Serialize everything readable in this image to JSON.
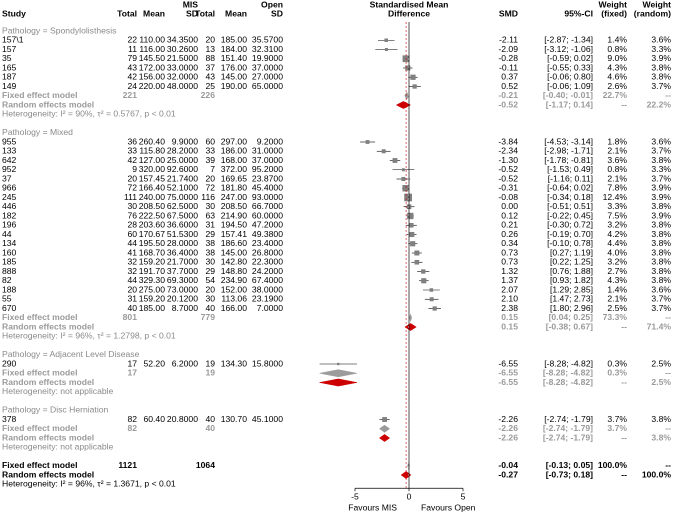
{
  "chart_data": {
    "type": "forest",
    "header": {
      "study": "Study",
      "total1": "Total",
      "mean1": "Mean",
      "group1": "MIS",
      "sd1": "SD",
      "total2": "Total",
      "mean2": "Mean",
      "group2": "Open",
      "sd2": "SD",
      "plot": [
        "Standardised Mean",
        "Difference"
      ],
      "smd": "SMD",
      "ci": "95%-CI",
      "weight_fixed": [
        "Weight",
        "(fixed)"
      ],
      "weight_random": [
        "Weight",
        "(random)"
      ]
    },
    "colors": {
      "square": "#808080",
      "ci": "#000000",
      "fixed": "#9c9c9c",
      "random": "#cc0000",
      "null_line": "#000000"
    },
    "xlim": [
      -5,
      5
    ],
    "xticks": [
      -5,
      0,
      5
    ],
    "xlabels": [
      "Favours MIS",
      "Favours Open"
    ],
    "groups": [
      {
        "title": "Pathology = Spondylolisthesis",
        "studies": [
          {
            "study": "157\\1",
            "n1": 22,
            "mean1": "110.00",
            "sd1": "34.3500",
            "n2": 20,
            "mean2": "185.00",
            "sd2": "35.5700",
            "smd": -2.11,
            "lo": -2.87,
            "hi": -1.34,
            "ci": "[-2.87; -1.34]",
            "w_fixed": {
              "value": 1.4,
              "label": "1.4%"
            },
            "w_random": "3.6%"
          },
          {
            "study": "157",
            "n1": 11,
            "mean1": "116.00",
            "sd1": "30.2600",
            "n2": 13,
            "mean2": "184.00",
            "sd2": "32.3100",
            "smd": -2.09,
            "lo": -3.12,
            "hi": -1.06,
            "ci": "[-3.12; -1.06]",
            "w_fixed": {
              "value": 0.8,
              "label": "0.8%"
            },
            "w_random": "3.3%"
          },
          {
            "study": "35",
            "n1": 79,
            "mean1": "145.50",
            "sd1": "21.5000",
            "n2": 88,
            "mean2": "151.40",
            "sd2": "19.9000",
            "smd": -0.28,
            "lo": -0.59,
            "hi": 0.02,
            "ci": "[-0.59; 0.02]",
            "w_fixed": {
              "value": 9.0,
              "label": "9.0%"
            },
            "w_random": "3.9%"
          },
          {
            "study": "165",
            "n1": 43,
            "mean1": "172.00",
            "sd1": "33.0000",
            "n2": 37,
            "mean2": "176.00",
            "sd2": "37.0000",
            "smd": -0.11,
            "lo": -0.55,
            "hi": 0.33,
            "ci": "[-0.55; 0.33]",
            "w_fixed": {
              "value": 4.3,
              "label": "4.3%"
            },
            "w_random": "3.8%"
          },
          {
            "study": "187",
            "n1": 42,
            "mean1": "156.00",
            "sd1": "32.0000",
            "n2": 43,
            "mean2": "145.00",
            "sd2": "27.0000",
            "smd": 0.37,
            "lo": -0.06,
            "hi": 0.8,
            "ci": "[-0.06; 0.80]",
            "w_fixed": {
              "value": 4.6,
              "label": "4.6%"
            },
            "w_random": "3.8%"
          },
          {
            "study": "149",
            "n1": 24,
            "mean1": "220.00",
            "sd1": "48.0000",
            "n2": 25,
            "mean2": "190.00",
            "sd2": "65.0000",
            "smd": 0.52,
            "lo": -0.06,
            "hi": 1.09,
            "ci": "[-0.06; 1.09]",
            "w_fixed": {
              "value": 2.6,
              "label": "2.6%"
            },
            "w_random": "3.7%"
          }
        ],
        "fixed": {
          "label": "Fixed effect model",
          "n1": 221,
          "n2": 226,
          "smd": -0.21,
          "lo": -0.4,
          "hi": -0.01,
          "ci": "[-0.40; -0.01]",
          "w_fixed": "22.7%",
          "w_random": "--"
        },
        "random": {
          "label": "Random effects model",
          "smd": -0.52,
          "lo": -1.17,
          "hi": 0.14,
          "ci": "[-1.17; 0.14]",
          "w_fixed": "--",
          "w_random": "22.2%"
        },
        "heterogeneity": "Heterogeneity: I² = 90%, τ² = 0.5767, p < 0.01"
      },
      {
        "title": "Pathology = Mixed",
        "studies": [
          {
            "study": "955",
            "n1": 36,
            "mean1": "260.40",
            "sd1": "9.9000",
            "n2": 60,
            "mean2": "297.00",
            "sd2": "9.2000",
            "smd": -3.84,
            "lo": -4.53,
            "hi": -3.14,
            "ci": "[-4.53; -3.14]",
            "w_fixed": {
              "value": 1.8,
              "label": "1.8%"
            },
            "w_random": "3.6%"
          },
          {
            "study": "133",
            "n1": 33,
            "mean1": "115.80",
            "sd1": "28.2000",
            "n2": 33,
            "mean2": "186.00",
            "sd2": "31.0000",
            "smd": -2.34,
            "lo": -2.98,
            "hi": -1.71,
            "ci": "[-2.98; -1.71]",
            "w_fixed": {
              "value": 2.1,
              "label": "2.1%"
            },
            "w_random": "3.7%"
          },
          {
            "study": "642",
            "n1": 42,
            "mean1": "127.00",
            "sd1": "25.0000",
            "n2": 39,
            "mean2": "168.00",
            "sd2": "37.0000",
            "smd": -1.3,
            "smd_label": "-1.30",
            "lo": -1.78,
            "hi": -0.81,
            "ci": "[-1.78; -0.81]",
            "w_fixed": {
              "value": 3.6,
              "label": "3.6%"
            },
            "w_random": "3.8%"
          },
          {
            "study": "952",
            "n1": 9,
            "mean1": "320.00",
            "sd1": "92.6000",
            "n2": 7,
            "mean2": "372.00",
            "sd2": "95.2000",
            "smd": -0.52,
            "lo": -1.53,
            "hi": 0.49,
            "ci": "[-1.53; 0.49]",
            "w_fixed": {
              "value": 0.8,
              "label": "0.8%"
            },
            "w_random": "3.3%"
          },
          {
            "study": "37",
            "n1": 20,
            "mean1": "157.45",
            "sd1": "21.7400",
            "n2": 20,
            "mean2": "169.65",
            "sd2": "23.8700",
            "smd": -0.52,
            "lo": -1.16,
            "hi": 0.11,
            "ci": "[-1.16; 0.11]",
            "w_fixed": {
              "value": 2.1,
              "label": "2.1%"
            },
            "w_random": "3.7%"
          },
          {
            "study": "966",
            "n1": 72,
            "mean1": "166.40",
            "sd1": "52.1000",
            "n2": 72,
            "mean2": "181.80",
            "sd2": "45.4000",
            "smd": -0.31,
            "lo": -0.64,
            "hi": 0.02,
            "ci": "[-0.64; 0.02]",
            "w_fixed": {
              "value": 7.8,
              "label": "7.8%"
            },
            "w_random": "3.9%"
          },
          {
            "study": "245",
            "n1": 111,
            "mean1": "240.00",
            "sd1": "75.0000",
            "n2": 116,
            "mean2": "247.00",
            "sd2": "93.0000",
            "smd": -0.08,
            "lo": -0.34,
            "hi": 0.18,
            "ci": "[-0.34; 0.18]",
            "w_fixed": {
              "value": 12.4,
              "label": "12.4%"
            },
            "w_random": "3.9%"
          },
          {
            "study": "446",
            "n1": 30,
            "mean1": "208.50",
            "sd1": "62.5000",
            "n2": 30,
            "mean2": "208.50",
            "sd2": "66.7000",
            "smd": 0,
            "smd_label": "0.00",
            "lo": -0.51,
            "hi": 0.51,
            "ci": "[-0.51; 0.51]",
            "w_fixed": {
              "value": 3.3,
              "label": "3.3%"
            },
            "w_random": "3.8%"
          },
          {
            "study": "182",
            "n1": 76,
            "mean1": "222.50",
            "sd1": "67.5000",
            "n2": 63,
            "mean2": "214.90",
            "sd2": "60.0000",
            "smd": 0.12,
            "lo": -0.22,
            "hi": 0.45,
            "ci": "[-0.22; 0.45]",
            "w_fixed": {
              "value": 7.5,
              "label": "7.5%"
            },
            "w_random": "3.9%"
          },
          {
            "study": "196",
            "n1": 28,
            "mean1": "203.60",
            "sd1": "36.6000",
            "n2": 31,
            "mean2": "194.50",
            "sd2": "47.2000",
            "smd": 0.21,
            "lo": -0.3,
            "hi": 0.72,
            "ci": "[-0.30; 0.72]",
            "w_fixed": {
              "value": 3.2,
              "label": "3.2%"
            },
            "w_random": "3.8%"
          },
          {
            "study": "44",
            "n1": 60,
            "mean1": "170.67",
            "sd1": "51.5300",
            "n2": 29,
            "mean2": "157.41",
            "sd2": "49.3800",
            "smd": 0.26,
            "lo": -0.19,
            "hi": 0.7,
            "ci": "[-0.19; 0.70]",
            "w_fixed": {
              "value": 4.2,
              "label": "4.2%"
            },
            "w_random": "3.8%"
          },
          {
            "study": "134",
            "n1": 44,
            "mean1": "195.50",
            "sd1": "28.0000",
            "n2": 38,
            "mean2": "186.60",
            "sd2": "23.4000",
            "smd": 0.34,
            "lo": -0.1,
            "hi": 0.78,
            "ci": "[-0.10; 0.78]",
            "w_fixed": {
              "value": 4.4,
              "label": "4.4%"
            },
            "w_random": "3.8%"
          },
          {
            "study": "160",
            "n1": 41,
            "mean1": "168.70",
            "sd1": "36.4000",
            "n2": 38,
            "mean2": "145.00",
            "sd2": "26.8000",
            "smd": 0.73,
            "lo": 0.27,
            "hi": 1.19,
            "ci": "[0.27; 1.19]",
            "w_fixed": {
              "value": 4.0,
              "label": "4.0%"
            },
            "w_random": "3.8%"
          },
          {
            "study": "185",
            "n1": 32,
            "mean1": "159.20",
            "sd1": "21.7000",
            "n2": 30,
            "mean2": "142.80",
            "sd2": "22.3000",
            "smd": 0.73,
            "lo": 0.22,
            "hi": 1.25,
            "ci": "[0.22; 1.25]",
            "w_fixed": {
              "value": 3.2,
              "label": "3.2%"
            },
            "w_random": "3.8%"
          },
          {
            "study": "888",
            "n1": 32,
            "mean1": "191.70",
            "sd1": "37.7000",
            "n2": 29,
            "mean2": "148.80",
            "sd2": "24.2000",
            "smd": 1.32,
            "lo": 0.76,
            "hi": 1.88,
            "ci": "[0.76; 1.88]",
            "w_fixed": {
              "value": 2.7,
              "label": "2.7%"
            },
            "w_random": "3.8%"
          },
          {
            "study": "82",
            "n1": 44,
            "mean1": "329.30",
            "sd1": "69.3000",
            "n2": 54,
            "mean2": "234.90",
            "sd2": "67.4000",
            "smd": 1.37,
            "lo": 0.93,
            "hi": 1.82,
            "ci": "[0.93; 1.82]",
            "w_fixed": {
              "value": 4.3,
              "label": "4.3%"
            },
            "w_random": "3.8%"
          },
          {
            "study": "188",
            "n1": 20,
            "mean1": "275.00",
            "sd1": "73.0000",
            "n2": 20,
            "mean2": "152.00",
            "sd2": "38.0000",
            "smd": 2.07,
            "lo": 1.29,
            "hi": 2.85,
            "ci": "[1.29; 2.85]",
            "w_fixed": {
              "value": 1.4,
              "label": "1.4%"
            },
            "w_random": "3.6%"
          },
          {
            "study": "55",
            "n1": 31,
            "mean1": "159.20",
            "sd1": "20.1200",
            "n2": 30,
            "mean2": "113.06",
            "sd2": "23.1900",
            "smd": 2.1,
            "smd_label": "2.10",
            "lo": 1.47,
            "hi": 2.73,
            "ci": "[1.47; 2.73]",
            "w_fixed": {
              "value": 2.1,
              "label": "2.1%"
            },
            "w_random": "3.7%"
          },
          {
            "study": "670",
            "n1": 40,
            "mean1": "185.00",
            "sd1": "8.7000",
            "n2": 40,
            "mean2": "166.00",
            "sd2": "7.0000",
            "smd": 2.38,
            "lo": 1.8,
            "hi": 2.96,
            "ci": "[1.80; 2.96]",
            "w_fixed": {
              "value": 2.5,
              "label": "2.5%"
            },
            "w_random": "3.7%"
          }
        ],
        "fixed": {
          "label": "Fixed effect model",
          "n1": 801,
          "n2": 779,
          "smd": 0.15,
          "lo": 0.04,
          "hi": 0.25,
          "ci": "[0.04; 0.25]",
          "w_fixed": "73.3%",
          "w_random": "--"
        },
        "random": {
          "label": "Random effects model",
          "smd": 0.15,
          "lo": -0.38,
          "hi": 0.67,
          "ci": "[-0.38; 0.67]",
          "w_fixed": "--",
          "w_random": "71.4%"
        },
        "heterogeneity": "Heterogeneity: I² = 96%, τ² = 1.2798, p < 0.01"
      },
      {
        "title": "Pathology = Adjacent Level Disease",
        "studies": [
          {
            "study": "290",
            "n1": 17,
            "mean1": "52.20",
            "sd1": "6.2000",
            "n2": 19,
            "mean2": "134.30",
            "sd2": "15.8000",
            "smd": -6.55,
            "lo": -8.28,
            "hi": -4.82,
            "ci": "[-8.28; -4.82]",
            "w_fixed": {
              "value": 0.3,
              "label": "0.3%"
            },
            "w_random": "2.5%"
          }
        ],
        "fixed": {
          "label": "Fixed effect model",
          "n1": 17,
          "n2": 19,
          "smd": -6.55,
          "lo": -8.28,
          "hi": -4.82,
          "ci": "[-8.28; -4.82]",
          "w_fixed": "0.3%",
          "w_random": "--"
        },
        "random": {
          "label": "Random effects model",
          "smd": -6.55,
          "lo": -8.28,
          "hi": -4.82,
          "ci": "[-8.28; -4.82]",
          "w_fixed": "--",
          "w_random": "2.5%"
        },
        "heterogeneity": "Heterogeneity: not applicable"
      },
      {
        "title": "Pathology = Disc Herniation",
        "studies": [
          {
            "study": "378",
            "n1": 82,
            "mean1": "60.40",
            "sd1": "20.8000",
            "n2": 40,
            "mean2": "130.70",
            "sd2": "45.1000",
            "smd": -2.26,
            "lo": -2.74,
            "hi": -1.79,
            "ci": "[-2.74; -1.79]",
            "w_fixed": {
              "value": 3.7,
              "label": "3.7%"
            },
            "w_random": "3.8%"
          }
        ],
        "fixed": {
          "label": "Fixed effect model",
          "n1": 82,
          "n2": 40,
          "smd": -2.26,
          "lo": -2.74,
          "hi": -1.79,
          "ci": "[-2.74; -1.79]",
          "w_fixed": "3.7%",
          "w_random": "--"
        },
        "random": {
          "label": "Random effects model",
          "smd": -2.26,
          "lo": -2.74,
          "hi": -1.79,
          "ci": "[-2.74; -1.79]",
          "w_fixed": "--",
          "w_random": "3.8%"
        },
        "heterogeneity": "Heterogeneity: not applicable"
      }
    ],
    "overall": {
      "fixed": {
        "label": "Fixed effect model",
        "n1": 1121,
        "n2": 1064,
        "smd": -0.04,
        "lo": -0.13,
        "hi": 0.05,
        "ci": "[-0.13; 0.05]",
        "w_fixed": "100.0%",
        "w_random": "--"
      },
      "random": {
        "label": "Random effects model",
        "smd": -0.27,
        "lo": -0.73,
        "hi": 0.18,
        "ci": "[-0.73; 0.18]",
        "w_fixed": "--",
        "w_random": "100.0%"
      },
      "heterogeneity": "Heterogeneity: I² = 96%, τ² = 1.3671, p < 0.01"
    }
  }
}
